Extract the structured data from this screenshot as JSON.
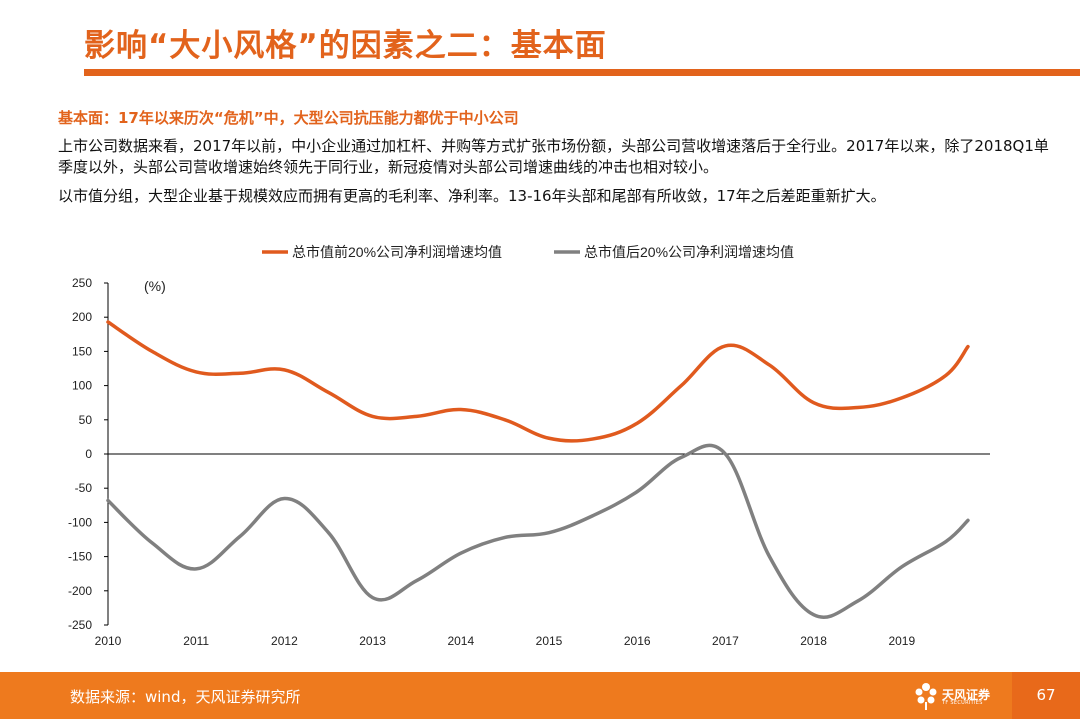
{
  "header": {
    "title": "影响“大小风格”的因素之二：基本面",
    "subhead": "基本面：17年以来历次“危机”中，大型公司抗压能力都优于中小公司",
    "para1": "上市公司数据来看，2017年以前，中小企业通过加杠杆、并购等方式扩张市场份额，头部公司营收增速落后于全行业。2017年以来，除了2018Q1单季度以外，头部公司营收增速始终领先于同行业，新冠疫情对头部公司增速曲线的冲击也相对较小。",
    "para2": "以市值分组，大型企业基于规模效应而拥有更高的毛利率、净利率。13-16年头部和尾部有所收敛，17年之后差距重新扩大。"
  },
  "chart_data": {
    "type": "line",
    "unit_label": "(%)",
    "x": [
      2010,
      2010.5,
      2011,
      2011.5,
      2012,
      2012.5,
      2013,
      2013.5,
      2014,
      2014.5,
      2015,
      2015.5,
      2016,
      2016.5,
      2017,
      2017.5,
      2018,
      2018.5,
      2019,
      2019.5,
      2019.75
    ],
    "x_ticks": [
      "2010",
      "2011",
      "2012",
      "2013",
      "2014",
      "2015",
      "2016",
      "2017",
      "2018",
      "2019"
    ],
    "ylim": [
      -250,
      250
    ],
    "y_ticks": [
      250,
      200,
      150,
      100,
      50,
      0,
      -50,
      -100,
      -150,
      -200,
      -250
    ],
    "series": [
      {
        "name": "总市值前20%公司净利润增速均值",
        "color": "#E05A1E",
        "values": [
          193,
          150,
          120,
          118,
          123,
          90,
          55,
          55,
          65,
          50,
          23,
          22,
          45,
          100,
          158,
          130,
          75,
          68,
          82,
          115,
          157
        ]
      },
      {
        "name": "总市值后20%公司净利润增速均值",
        "color": "#808080",
        "values": [
          -68,
          -130,
          -168,
          -120,
          -65,
          -115,
          -210,
          -185,
          -145,
          -122,
          -115,
          -90,
          -55,
          -5,
          0,
          -150,
          -235,
          -215,
          -165,
          -128,
          -97
        ]
      }
    ],
    "legend_position": "top",
    "grid": false
  },
  "footer": {
    "source": "数据来源：wind，天风证券研究所",
    "logo_text": "天风证券",
    "logo_sub": "TF SECURITIES",
    "page": "67",
    "color": "#EE7A1E"
  }
}
